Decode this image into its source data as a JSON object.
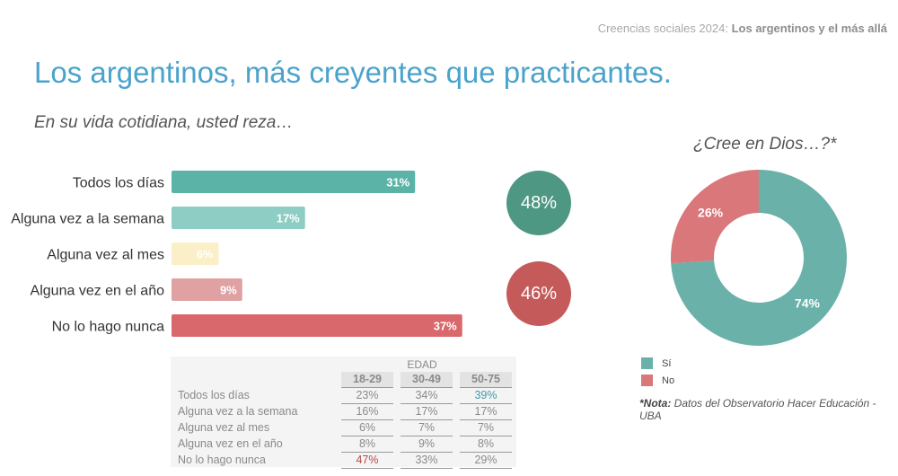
{
  "header": {
    "series": "Creencias sociales 2024:",
    "topic": "Los argentinos y el más allá"
  },
  "title": "Los argentinos, más creyentes que practicantes.",
  "subtitle": "En su vida cotidiana, usted reza…",
  "bubbles": [
    {
      "label": "48%",
      "color": "#4e9782"
    },
    {
      "label": "46%",
      "color": "#c45a5a"
    }
  ],
  "donut_title": "¿Cree en Dios…?*",
  "legend": [
    {
      "label": "Sí",
      "color": "#6ab1aa"
    },
    {
      "label": "No",
      "color": "#d9777a"
    }
  ],
  "note": {
    "bold": "*Nota:",
    "text": " Datos del Observatorio Hacer Educación - UBA"
  },
  "age_table": {
    "group_header": "EDAD",
    "columns": [
      "18-29",
      "30-49",
      "50-75"
    ],
    "rows": [
      {
        "label": "Todos los días",
        "values": [
          "23%",
          "34%",
          "39%"
        ]
      },
      {
        "label": "Alguna vez a la semana",
        "values": [
          "16%",
          "17%",
          "17%"
        ]
      },
      {
        "label": "Alguna vez al mes",
        "values": [
          "6%",
          "7%",
          "7%"
        ]
      },
      {
        "label": "Alguna vez en el año",
        "values": [
          "8%",
          "9%",
          "8%"
        ]
      },
      {
        "label": "No lo hago nunca",
        "values": [
          "47%",
          "33%",
          "29%"
        ]
      }
    ]
  },
  "chart_data": [
    {
      "type": "bar",
      "orientation": "horizontal",
      "title": "En su vida cotidiana, usted reza…",
      "categories": [
        "Todos los días",
        "Alguna vez a la semana",
        "Alguna vez al mes",
        "Alguna vez en el año",
        "No lo hago nunca"
      ],
      "values": [
        31,
        17,
        6,
        9,
        37
      ],
      "value_labels": [
        "31%",
        "17%",
        "6%",
        "9%",
        "37%"
      ],
      "colors": [
        "#5bb3a7",
        "#8ecdc3",
        "#fbefc8",
        "#e0a1a2",
        "#d9686c"
      ],
      "xlim": [
        0,
        100
      ],
      "grid": false
    },
    {
      "type": "pie",
      "donut": true,
      "title": "¿Cree en Dios…?*",
      "categories": [
        "Sí",
        "No"
      ],
      "values": [
        74,
        26
      ],
      "value_labels": [
        "74%",
        "26%"
      ],
      "colors": [
        "#6ab1aa",
        "#d9777a"
      ]
    }
  ]
}
